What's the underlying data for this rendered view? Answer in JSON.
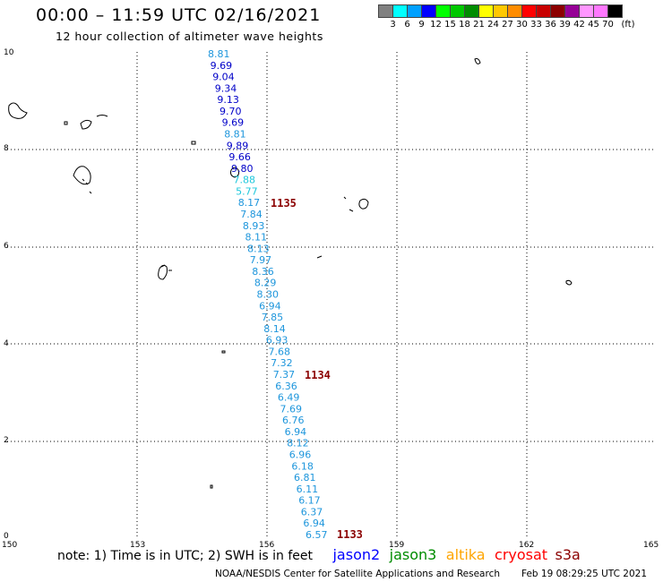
{
  "header": {
    "title": "00:00 – 11:59 UTC 02/16/2021",
    "subtitle": "12 hour collection of altimeter wave heights"
  },
  "legend": {
    "colors": [
      "#808080",
      "#00ffff",
      "#00a0ff",
      "#0000ff",
      "#00ff00",
      "#00c800",
      "#008c00",
      "#ffff00",
      "#ffc800",
      "#ff8c00",
      "#ff0000",
      "#c80000",
      "#8c0000",
      "#960096",
      "#ff96ff",
      "#ff78ff",
      "#000000"
    ],
    "labels": [
      "3",
      "6",
      "9",
      "12",
      "15",
      "18",
      "21",
      "24",
      "27",
      "30",
      "33",
      "36",
      "39",
      "42",
      "45",
      "70"
    ],
    "unit": "(ft)"
  },
  "axes": {
    "x_labels": [
      "150",
      "153",
      "156",
      "159",
      "162",
      "165"
    ],
    "y_labels": [
      "0",
      "2",
      "4",
      "6",
      "8",
      "10"
    ]
  },
  "track": {
    "values": [
      "8.81",
      "9.69",
      "9.04",
      "9.34",
      "9.13",
      "9.70",
      "9.69",
      "8.81",
      "9.89",
      "9.66",
      "9.80",
      "7.88",
      "5.77",
      "8.17",
      "7.84",
      "8.93",
      "8.11",
      "8.13",
      "7.97",
      "8.36",
      "8.29",
      "8.30",
      "6.94",
      "7.85",
      "8.14",
      "6.93",
      "7.68",
      "7.32",
      "7.37",
      "6.36",
      "6.49",
      "7.69",
      "6.76",
      "6.94",
      "8.12",
      "6.96",
      "6.18",
      "6.81",
      "6.11",
      "6.17",
      "6.37",
      "6.94",
      "6.57"
    ],
    "colors": [
      "#1e96dc",
      "#0000c8",
      "#0000c8",
      "#0000c8",
      "#0000c8",
      "#0000c8",
      "#0000c8",
      "#1e96dc",
      "#0000c8",
      "#0000c8",
      "#0000c8",
      "#1ec8dc",
      "#1ec8dc",
      "#1e96dc",
      "#1e96dc",
      "#1e96dc",
      "#1e96dc",
      "#1e96dc",
      "#1e96dc",
      "#1e96dc",
      "#1e96dc",
      "#1e96dc",
      "#1e96dc",
      "#1e96dc",
      "#1e96dc",
      "#1e96dc",
      "#1e96dc",
      "#1e96dc",
      "#1e96dc",
      "#1e96dc",
      "#1e96dc",
      "#1e96dc",
      "#1e96dc",
      "#1e96dc",
      "#1e96dc",
      "#1e96dc",
      "#1e96dc",
      "#1e96dc",
      "#1e96dc",
      "#1e96dc",
      "#1e96dc",
      "#1e96dc",
      "#1e96dc"
    ]
  },
  "time_labels": [
    "1135",
    "1134",
    "1133"
  ],
  "time_label_color": "#8b0000",
  "note": {
    "text": "note: 1) Time is in UTC; 2) SWH is in feet",
    "satellites": [
      {
        "name": "jason2",
        "color": "#0000ff"
      },
      {
        "name": "jason3",
        "color": "#008c00"
      },
      {
        "name": "altika",
        "color": "#ffa500"
      },
      {
        "name": "cryosat",
        "color": "#ff0000"
      },
      {
        "name": "s3a",
        "color": "#8b0000"
      }
    ]
  },
  "footer": {
    "credit": "NOAA/NESDIS Center for Satellite Applications and Research",
    "timestamp": "Feb 19 08:29:25 UTC 2021"
  }
}
